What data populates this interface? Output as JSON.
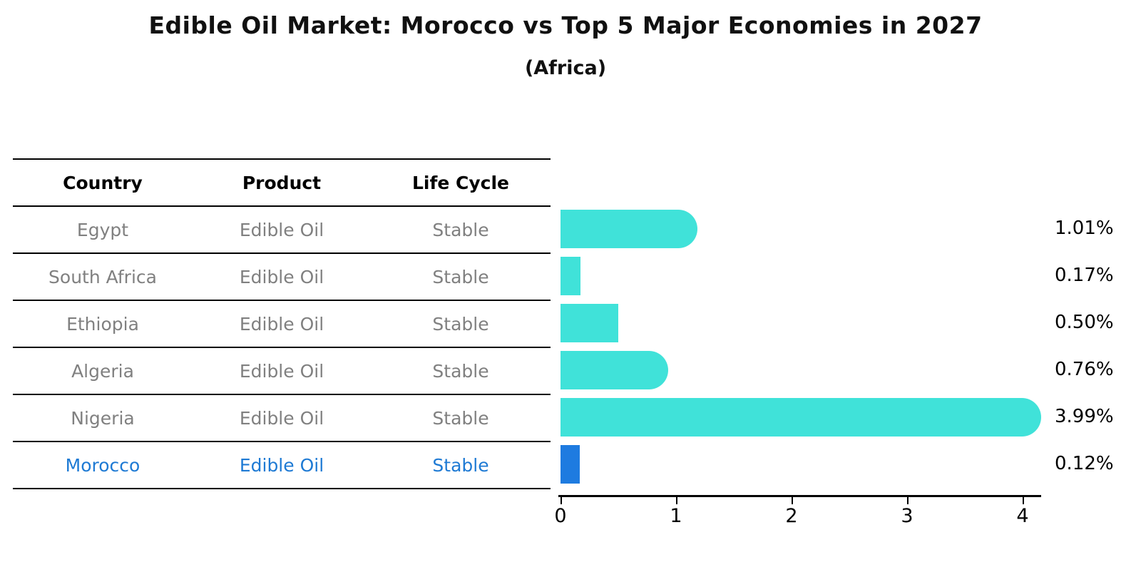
{
  "title": "Edible Oil Market: Morocco vs Top 5 Major Economies in 2027",
  "subtitle": "(Africa)",
  "table": {
    "headers": [
      "Country",
      "Product",
      "Life Cycle"
    ],
    "rows": [
      {
        "country": "Egypt",
        "product": "Edible Oil",
        "life_cycle": "Stable"
      },
      {
        "country": "South Africa",
        "product": "Edible Oil",
        "life_cycle": "Stable"
      },
      {
        "country": "Ethiopia",
        "product": "Edible Oil",
        "life_cycle": "Stable"
      },
      {
        "country": "Algeria",
        "product": "Edible Oil",
        "life_cycle": "Stable"
      },
      {
        "country": "Nigeria",
        "product": "Edible Oil",
        "life_cycle": "Stable"
      },
      {
        "country": "Morocco",
        "product": "Edible Oil",
        "life_cycle": "Stable"
      }
    ]
  },
  "chart_data": {
    "type": "bar",
    "orientation": "horizontal",
    "title": "Edible Oil Market: Morocco vs Top 5 Major Economies in 2027",
    "subtitle": "(Africa)",
    "categories": [
      "Egypt",
      "South Africa",
      "Ethiopia",
      "Algeria",
      "Nigeria",
      "Morocco"
    ],
    "values": [
      1.01,
      0.17,
      0.5,
      0.76,
      3.99,
      0.12
    ],
    "value_labels": [
      "1.01%",
      "0.17%",
      "0.50%",
      "0.76%",
      "3.99%",
      "0.12%"
    ],
    "xticks": [
      "0",
      "1",
      "2",
      "3",
      "4"
    ],
    "xtick_values": [
      0,
      1,
      2,
      3,
      4
    ],
    "xlim": [
      0,
      4.17
    ],
    "grid": false,
    "legend": false,
    "bar_color": "#40e2d9",
    "highlight_color": "#1e7be0",
    "highlight_index": 5,
    "rounded_end_indices": [
      0,
      3,
      4
    ]
  }
}
